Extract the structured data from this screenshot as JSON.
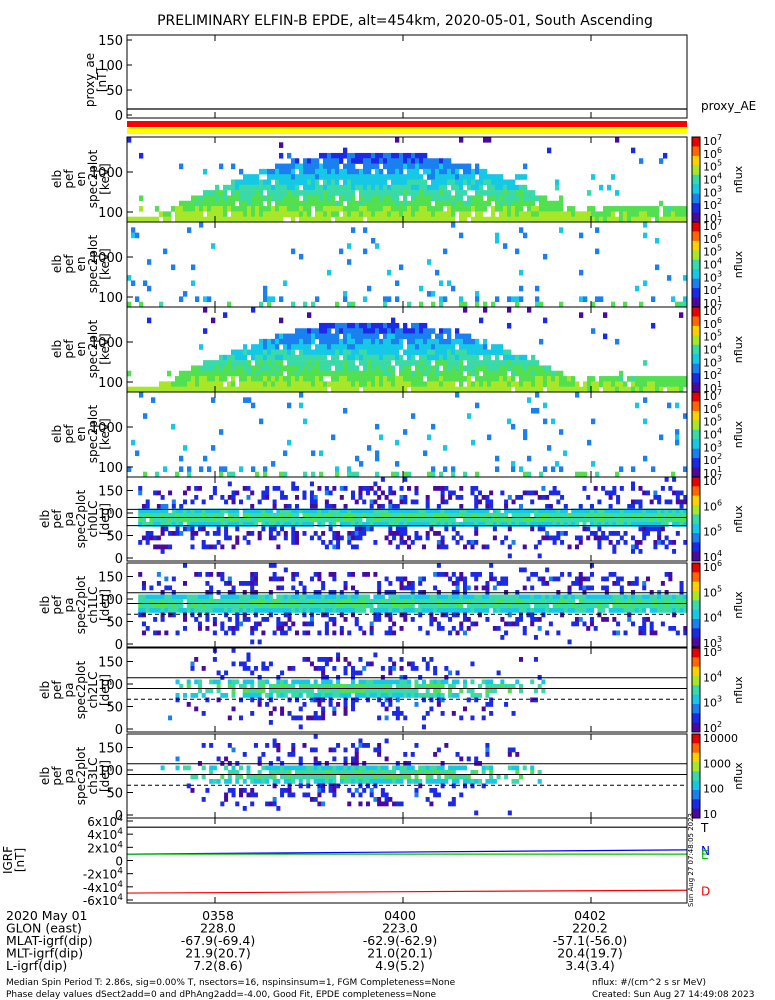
{
  "title": "PRELIMINARY ELFIN-B EPDE, alt=454km, 2020-05-01, South Ascending",
  "proxy_panel": {
    "ylabel_lines": [
      "proxy_ae",
      "[nT]"
    ],
    "yticks": [
      "150",
      "100",
      "50",
      "0"
    ],
    "series_label": "proxy_AE",
    "value": 12
  },
  "indicator_bars": [
    "#ff0000",
    "#ffff00"
  ],
  "colorbar_unit": "nflux",
  "spectra_panels": [
    {
      "ylabel_lines": [
        "elb",
        "pef",
        "en",
        "spec2plot",
        "[keV]"
      ],
      "yticks": [
        "1000",
        "100"
      ],
      "colorbar_ticks": [
        "10^7",
        "10^6",
        "10^5",
        "10^4",
        "10^3",
        "10^2",
        "10^1"
      ]
    },
    {
      "ylabel_lines": [
        "elb",
        "pef",
        "en",
        "spec2plot",
        "[keV]"
      ],
      "yticks": [
        "1000",
        "100"
      ],
      "colorbar_ticks": [
        "10^7",
        "10^6",
        "10^5",
        "10^4",
        "10^3",
        "10^2",
        "10^1"
      ]
    },
    {
      "ylabel_lines": [
        "elb",
        "pef",
        "en",
        "spec2plot",
        "[keV]"
      ],
      "yticks": [
        "1000",
        "100"
      ],
      "colorbar_ticks": [
        "10^7",
        "10^6",
        "10^5",
        "10^4",
        "10^3",
        "10^2",
        "10^1"
      ]
    },
    {
      "ylabel_lines": [
        "elb",
        "pef",
        "en",
        "spec2plot",
        "[keV]"
      ],
      "yticks": [
        "1000",
        "100"
      ],
      "colorbar_ticks": [
        "10^7",
        "10^6",
        "10^5",
        "10^4",
        "10^3",
        "10^2",
        "10^1"
      ]
    }
  ],
  "pitch_panels": [
    {
      "ylabel_lines": [
        "elb",
        "pef",
        "pa",
        "spec2plot",
        "ch0LC",
        "[deg]"
      ],
      "yticks": [
        "150",
        "100",
        "50",
        "0"
      ],
      "colorbar_ticks": [
        "10^7",
        "10^6",
        "10^5",
        "10^4"
      ],
      "loss_cone_deg": [
        72,
        108
      ]
    },
    {
      "ylabel_lines": [
        "elb",
        "pef",
        "pa",
        "spec2plot",
        "ch1LC",
        "[deg]"
      ],
      "yticks": [
        "150",
        "100",
        "50",
        "0"
      ],
      "colorbar_ticks": [
        "10^6",
        "10^5",
        "10^4",
        "10^3"
      ],
      "loss_cone_deg": [
        66,
        114
      ]
    },
    {
      "ylabel_lines": [
        "elb",
        "pef",
        "pa",
        "spec2plot",
        "ch2LC",
        "[deg]"
      ],
      "yticks": [
        "150",
        "100",
        "50",
        "0"
      ],
      "colorbar_ticks": [
        "10^5",
        "10^4",
        "10^3",
        "10^2"
      ],
      "loss_cone_deg": [
        66,
        114
      ]
    },
    {
      "ylabel_lines": [
        "elb",
        "pef",
        "pa",
        "spec2plot",
        "ch3LC",
        "[deg]"
      ],
      "yticks": [
        "150",
        "100",
        "50",
        "0"
      ],
      "colorbar_ticks": [
        "10000",
        "1000",
        "100",
        "10"
      ],
      "loss_cone_deg": [
        66,
        114
      ]
    }
  ],
  "igrf_panel": {
    "ylabel_lines": [
      "IGRF",
      "[nT]"
    ],
    "yticks": [
      "6x10^4",
      "4x10^4",
      "2x10^4",
      "0",
      "-2x10^4",
      "-4x10^4",
      "-6x10^4"
    ],
    "ylim": [
      -60000,
      60000
    ],
    "side_text": "Sun Aug 27 07:48:05 2023",
    "series": [
      {
        "name": "T",
        "color": "#000000",
        "start": 47000,
        "end": 47000
      },
      {
        "name": "N",
        "color": "#0000ff",
        "start": 9000,
        "end": 15000
      },
      {
        "name": "E",
        "color": "#00c000",
        "start": 9000,
        "end": 9000
      },
      {
        "name": "D",
        "color": "#ff0000",
        "start": -46000,
        "end": -42000
      }
    ]
  },
  "footer_table": {
    "rows": [
      {
        "label": "2020 May 01",
        "values": [
          "0358",
          "0400",
          "0402"
        ]
      },
      {
        "label": "GLON (east)",
        "values": [
          "228.0",
          "223.0",
          "220.2"
        ]
      },
      {
        "label": "MLAT-igrf(dip)",
        "values": [
          "-67.9(-69.4)",
          "-62.9(-62.9)",
          "-57.1(-56.0)"
        ]
      },
      {
        "label": "MLT-igrf(dip)",
        "values": [
          "21.9(20.7)",
          "21.0(20.1)",
          "20.4(19.7)"
        ]
      },
      {
        "label": "L-igrf(dip)",
        "values": [
          "7.2(8.6)",
          "4.9(5.2)",
          "3.4(3.4)"
        ]
      }
    ]
  },
  "notes": {
    "line1": "Median Spin Period T: 2.86s, sig=0.00% T, nsectors=16, nspinsinsum=1, FGM Completeness=None",
    "line2": "Phase delay values dSect2add=0 and dPhAng2add=-4.00, Good Fit, EPDE completeness=None",
    "units": "nflux: #/(cm^2 s sr MeV)",
    "created": "Created: Sun Aug 27 14:49:08 2023"
  }
}
